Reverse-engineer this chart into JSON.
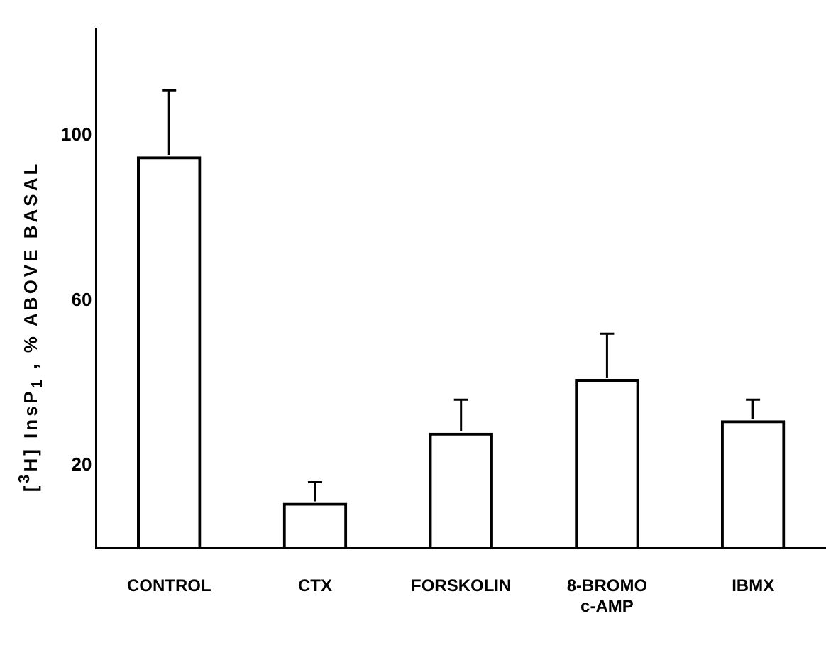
{
  "chart_data": {
    "type": "bar",
    "ylabel": "[$^{3}$H] InsP$_{1}$ , % ABOVE BASAL",
    "categories": [
      "CONTROL",
      "CTX",
      "FORSKOLIN",
      "8-BROMO\nc-AMP",
      "IBMX"
    ],
    "values": [
      95,
      11,
      28,
      41,
      31
    ],
    "errors": [
      [
        95,
        111
      ],
      [
        11,
        16
      ],
      [
        28,
        36
      ],
      [
        41,
        52
      ],
      [
        31,
        36
      ]
    ],
    "color": "#000000",
    "ylim": [
      0,
      126
    ],
    "yticks": [
      20,
      60,
      100
    ],
    "grid": false,
    "legend": false
  }
}
